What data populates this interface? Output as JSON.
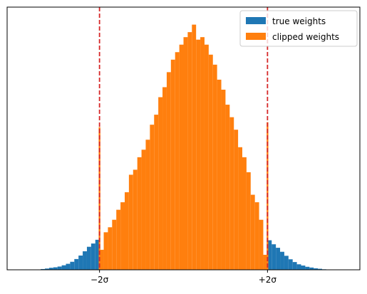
{
  "chart_data": {
    "type": "bar",
    "title": "",
    "xlabel": "",
    "ylabel": "",
    "x_tick_labels": [
      "−2σ",
      "+2σ"
    ],
    "x_ticks": [
      -2,
      2
    ],
    "xlim": [
      -4.2,
      4.2
    ],
    "ylim": [
      0,
      1.05
    ],
    "bin_width": 0.1,
    "grid": false,
    "legend_position": "top-right",
    "reference_lines": [
      {
        "x": -2,
        "color": "#d62728",
        "style": "dashed"
      },
      {
        "x": 2,
        "color": "#d62728",
        "style": "dashed"
      }
    ],
    "series": [
      {
        "name": "true weights",
        "color": "#1f77b4",
        "x": [
          -3.35,
          -3.25,
          -3.15,
          -3.05,
          -2.95,
          -2.85,
          -2.75,
          -2.65,
          -2.55,
          -2.45,
          -2.35,
          -2.25,
          -2.15,
          -2.05,
          2.05,
          2.15,
          2.25,
          2.35,
          2.45,
          2.55,
          2.65,
          2.75,
          2.85,
          2.95,
          3.05,
          3.15,
          3.25,
          3.35
        ],
        "values": [
          0.003,
          0.005,
          0.008,
          0.01,
          0.013,
          0.018,
          0.024,
          0.032,
          0.043,
          0.057,
          0.074,
          0.092,
          0.105,
          0.12,
          0.118,
          0.102,
          0.088,
          0.072,
          0.056,
          0.042,
          0.031,
          0.022,
          0.017,
          0.012,
          0.009,
          0.006,
          0.004,
          0.002
        ]
      },
      {
        "name": "clipped weights",
        "color": "#ff7f0e",
        "x": [
          -2.0,
          -1.95,
          -1.85,
          -1.75,
          -1.65,
          -1.55,
          -1.45,
          -1.35,
          -1.25,
          -1.15,
          -1.05,
          -0.95,
          -0.85,
          -0.75,
          -0.65,
          -0.55,
          -0.45,
          -0.35,
          -0.25,
          -0.15,
          -0.05,
          0.05,
          0.15,
          0.25,
          0.35,
          0.45,
          0.55,
          0.65,
          0.75,
          0.85,
          0.95,
          1.05,
          1.15,
          1.25,
          1.35,
          1.45,
          1.55,
          1.65,
          1.75,
          1.85,
          1.95,
          2.0
        ],
        "values": [
          0.57,
          0.08,
          0.15,
          0.17,
          0.2,
          0.24,
          0.27,
          0.31,
          0.38,
          0.4,
          0.45,
          0.48,
          0.52,
          0.58,
          0.62,
          0.69,
          0.73,
          0.79,
          0.84,
          0.87,
          0.9,
          0.93,
          0.95,
          0.98,
          0.92,
          0.93,
          0.9,
          0.86,
          0.82,
          0.76,
          0.72,
          0.66,
          0.61,
          0.56,
          0.49,
          0.45,
          0.39,
          0.3,
          0.27,
          0.2,
          0.06,
          0.59
        ]
      }
    ]
  }
}
